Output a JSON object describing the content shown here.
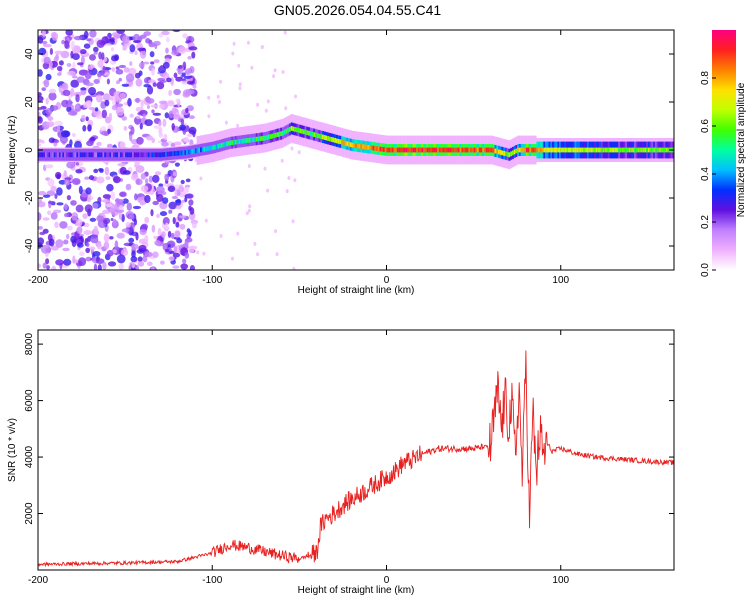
{
  "page_title": "GN05.2026.054.04.55.C41",
  "chart_data": [
    {
      "type": "heatmap",
      "title": "GN05.2026.054.04.55.C41",
      "xlabel": "Height of straight line (km)",
      "ylabel": "Frequency (Hz)",
      "xlim": [
        -200,
        165
      ],
      "ylim": [
        -50,
        50
      ],
      "xticks": [
        -200,
        -100,
        0,
        100
      ],
      "yticks": [
        -40,
        -20,
        0,
        20,
        40
      ],
      "grid": false,
      "colorbar": {
        "label": "Normalized spectral amplitude",
        "range": [
          0,
          1
        ],
        "ticks": [
          0.0,
          0.2,
          0.4,
          0.6,
          0.8
        ],
        "colors": [
          "#ffffff",
          "#f0b0ff",
          "#c080ff",
          "#6010e0",
          "#0030ff",
          "#00c0ff",
          "#00ffa0",
          "#40ff00",
          "#c0ff00",
          "#ffe000",
          "#ff8000",
          "#ff2020",
          "#ff0080"
        ]
      },
      "ridge": {
        "x": [
          -200,
          -170,
          -150,
          -130,
          -115,
          -100,
          -90,
          -80,
          -70,
          -60,
          -55,
          -50,
          -45,
          -40,
          -30,
          -20,
          -10,
          0,
          10,
          20,
          40,
          60,
          70,
          75,
          80,
          90,
          100,
          120,
          140,
          165
        ],
        "frequency": [
          -2,
          -2,
          -2,
          -2,
          -1,
          1,
          3,
          4,
          5,
          7,
          9,
          8,
          7,
          6,
          4,
          2,
          1,
          0,
          0,
          0,
          0,
          0,
          -2,
          0,
          0,
          0,
          0,
          0,
          0,
          0
        ],
        "amplitude": [
          0.25,
          0.25,
          0.25,
          0.3,
          0.35,
          0.45,
          0.5,
          0.5,
          0.55,
          0.55,
          0.6,
          0.55,
          0.55,
          0.6,
          0.7,
          0.8,
          0.85,
          0.9,
          0.92,
          0.92,
          0.88,
          0.85,
          0.6,
          0.7,
          0.9,
          0.75,
          0.7,
          0.65,
          0.62,
          0.6
        ]
      },
      "scatter_noise": {
        "x_range": [
          -200,
          -110
        ],
        "y_range": [
          -50,
          50
        ],
        "amplitude_range": [
          0.05,
          0.3
        ]
      }
    },
    {
      "type": "line",
      "xlabel": "Height of straight line (km)",
      "ylabel": "SNR (10 * v/v)",
      "xlim": [
        -200,
        165
      ],
      "ylim": [
        0,
        8500
      ],
      "xticks": [
        -200,
        -100,
        0,
        100
      ],
      "yticks": [
        2000,
        4000,
        6000,
        8000
      ],
      "grid": false,
      "series": [
        {
          "color": "#e82020",
          "x": [
            -200,
            -150,
            -120,
            -100,
            -90,
            -80,
            -70,
            -60,
            -50,
            -40,
            -38,
            -35,
            -30,
            -25,
            -20,
            -15,
            -10,
            -5,
            0,
            5,
            10,
            15,
            20,
            25,
            30,
            40,
            50,
            55,
            60,
            62,
            64,
            66,
            68,
            70,
            72,
            74,
            76,
            78,
            80,
            82,
            84,
            86,
            88,
            90,
            92,
            95,
            100,
            110,
            120,
            130,
            140,
            150,
            165
          ],
          "y": [
            200,
            250,
            300,
            600,
            900,
            800,
            650,
            500,
            400,
            600,
            1500,
            1800,
            2000,
            2300,
            2500,
            2700,
            2900,
            3100,
            3300,
            3500,
            3800,
            3900,
            4100,
            4200,
            4300,
            4300,
            4300,
            4350,
            4400,
            5500,
            6300,
            5000,
            6100,
            5200,
            5800,
            4000,
            6500,
            3300,
            7500,
            1800,
            5600,
            3400,
            4900,
            4000,
            4500,
            4200,
            4300,
            4100,
            4000,
            3950,
            3900,
            3850,
            3800
          ]
        }
      ]
    }
  ]
}
